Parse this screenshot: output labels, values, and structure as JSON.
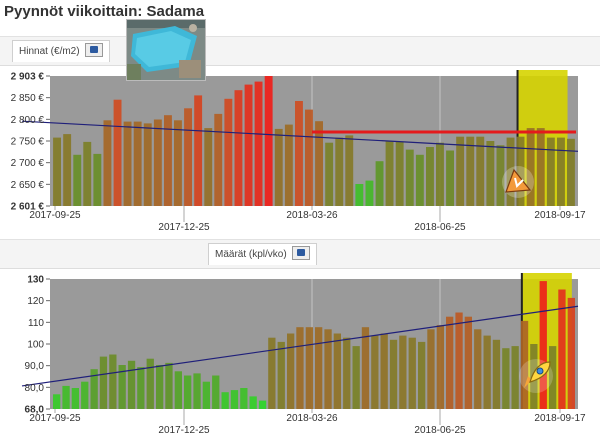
{
  "page": {
    "title": "Pyynnöt viikoittain: Sadama"
  },
  "colors": {
    "plot_bg": "#9a9a9a",
    "highlight": "#d6d400",
    "trend": "#1f1f7a",
    "reference_line": "#e41a1c"
  },
  "icons": {
    "thumbnail": "map-thumbnail",
    "export": "export-icon",
    "price_marker": "decline-marker-icon",
    "volume_marker": "rocket-icon"
  },
  "prices": {
    "tab_label": "Hinnat (€/m2)",
    "chart_data": {
      "type": "bar",
      "ylabel": "",
      "xlabel": "",
      "ylim": [
        2601,
        2903
      ],
      "y_ticks": [
        "2 903 €",
        "2 850 €",
        "2 800 €",
        "2 750 €",
        "2 700 €",
        "2 650 €",
        "2 601 €"
      ],
      "x_ticks": [
        "2017-09-25",
        "2017-12-25",
        "2018-03-26",
        "2018-06-25",
        "2018-09-17"
      ],
      "values": [
        2760,
        2768,
        2720,
        2750,
        2722,
        2800,
        2848,
        2797,
        2797,
        2793,
        2802,
        2812,
        2800,
        2828,
        2858,
        2782,
        2815,
        2850,
        2870,
        2883,
        2890,
        2903,
        2780,
        2790,
        2845,
        2825,
        2798,
        2748,
        2760,
        2765,
        2652,
        2660,
        2705,
        2752,
        2750,
        2732,
        2720,
        2738,
        2748,
        2730,
        2762,
        2762,
        2762,
        2752,
        2742,
        2760,
        2762,
        2782,
        2782,
        2760,
        2760,
        2757
      ],
      "trend": {
        "start": 2798,
        "end": 2728
      },
      "reference_value": 2773,
      "highlight_from_index": 46
    }
  },
  "volumes": {
    "tab_label": "Määrät (kpl/vko)",
    "chart_data": {
      "type": "bar",
      "ylabel": "",
      "xlabel": "",
      "ylim": [
        68,
        130
      ],
      "y_ticks": [
        "130",
        "120",
        "110",
        "100",
        "90,0",
        "80,0",
        "68,0"
      ],
      "x_ticks": [
        "2017-09-25",
        "2017-12-25",
        "2018-03-26",
        "2018-06-25",
        "2018-09-17"
      ],
      "values": [
        75,
        79,
        78,
        81,
        87,
        93,
        94,
        89,
        91,
        88,
        92,
        89,
        90,
        86,
        84,
        85,
        81,
        84,
        76,
        77,
        78,
        74,
        72,
        102,
        100,
        104,
        107,
        107,
        107,
        106,
        104,
        102,
        98,
        107,
        103,
        104,
        101,
        103,
        102,
        100,
        106,
        108,
        112,
        114,
        112,
        106,
        103,
        101,
        97,
        98,
        110,
        99,
        129,
        98,
        125,
        121
      ],
      "trend": {
        "start": 79,
        "end": 117
      },
      "highlight_from_index": 50
    }
  }
}
